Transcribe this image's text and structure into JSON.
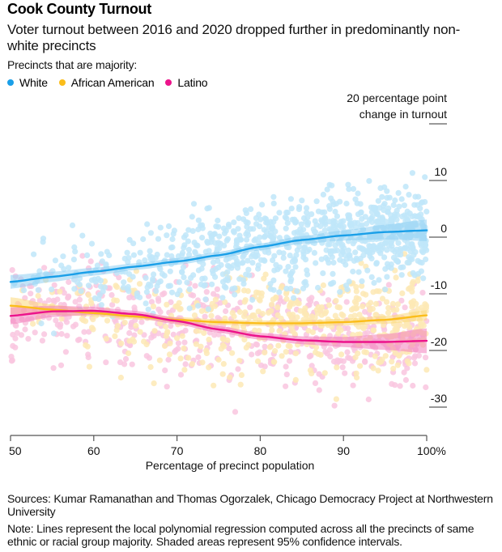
{
  "header": {
    "title": "Cook County Turnout",
    "subtitle": "Voter turnout between 2016 and 2020 dropped further in predominantly non-white precincts"
  },
  "legend": {
    "heading": "Precincts that are majority:",
    "items": [
      {
        "label": "White",
        "color": "#1a9fe8"
      },
      {
        "label": "African American",
        "color": "#fbbd1a"
      },
      {
        "label": "Latino",
        "color": "#ec138b"
      }
    ]
  },
  "footer": {
    "sources": "Sources: Kumar Ramanathan and Thomas Ogorzalek, Chicago Democracy Project at Northwestern University",
    "note": "Note: Lines represent the local polynomial regression computed across all the precincts of same ethnic or racial group majority. Shaded areas represent 95% confidence intervals."
  },
  "chart_data": {
    "type": "scatter",
    "title": "Cook County Turnout",
    "xlabel": "Percentage of precinct population",
    "ylabel": "20 percentage point change in turnout",
    "xlim": [
      50,
      100
    ],
    "ylim": [
      -35,
      20
    ],
    "x_ticks": [
      50,
      60,
      70,
      80,
      90,
      100
    ],
    "x_tick_labels": [
      "50",
      "60",
      "70",
      "80",
      "90",
      "100%"
    ],
    "y_ticks": [
      20,
      10,
      0,
      -10,
      -20,
      -30
    ],
    "y_tick_labels": [
      "20 percentage point",
      "10",
      "0",
      "-10",
      "-20",
      "-30"
    ],
    "y_title_line2": "change in turnout",
    "grid": false,
    "legend_position": "top-left",
    "series": [
      {
        "name": "White",
        "color": "#1a9fe8",
        "point_color": "#bfe6f9",
        "band_color": "#8fd0f3",
        "fit_x": [
          50,
          55,
          60,
          65,
          70,
          75,
          80,
          85,
          90,
          95,
          100
        ],
        "fit_y": [
          -7.9,
          -7.0,
          -6.1,
          -5.2,
          -4.3,
          -3.2,
          -1.7,
          -0.5,
          0.3,
          0.9,
          1.2
        ],
        "ci_halfwidth": [
          1.2,
          0.9,
          0.7,
          0.6,
          0.6,
          0.6,
          0.6,
          0.7,
          0.9,
          1.3,
          1.9
        ],
        "scatter": {
          "count": 900,
          "x_range": [
            50,
            100
          ],
          "spread": 5.5,
          "x_skew": "right"
        }
      },
      {
        "name": "African American",
        "color": "#fbbd1a",
        "point_color": "#fde9b5",
        "band_color": "#fcd97a",
        "fit_x": [
          50,
          55,
          60,
          65,
          70,
          75,
          80,
          85,
          90,
          95,
          100
        ],
        "fit_y": [
          -12.1,
          -12.8,
          -13.4,
          -14.0,
          -14.6,
          -15.0,
          -15.2,
          -15.2,
          -15.0,
          -14.6,
          -13.8
        ],
        "ci_halfwidth": [
          1.5,
          0.9,
          0.6,
          0.5,
          0.5,
          0.5,
          0.5,
          0.5,
          0.6,
          0.7,
          0.9
        ],
        "scatter": {
          "count": 500,
          "x_range": [
            50,
            100
          ],
          "spread": 6.0,
          "x_skew": "right"
        }
      },
      {
        "name": "Latino",
        "color": "#ec138b",
        "point_color": "#f9c6df",
        "band_color": "#f37dbb",
        "fit_x": [
          50,
          55,
          60,
          65,
          70,
          75,
          80,
          85,
          90,
          95,
          100
        ],
        "fit_y": [
          -13.9,
          -13.1,
          -13.0,
          -13.6,
          -14.8,
          -16.3,
          -17.5,
          -18.2,
          -18.5,
          -18.5,
          -18.3
        ],
        "ci_halfwidth": [
          1.5,
          1.0,
          0.7,
          0.6,
          0.6,
          0.6,
          0.6,
          0.7,
          0.9,
          1.4,
          2.2
        ],
        "scatter": {
          "count": 550,
          "x_range": [
            50,
            100
          ],
          "spread": 6.5,
          "x_skew": "none"
        }
      }
    ]
  }
}
